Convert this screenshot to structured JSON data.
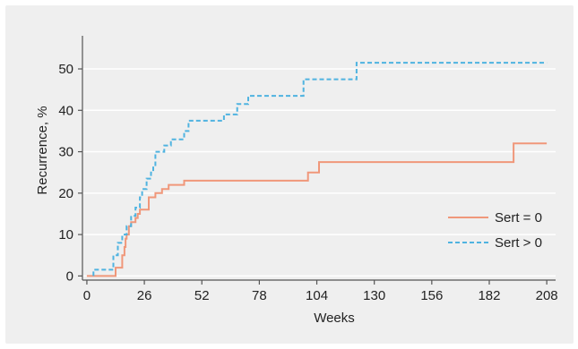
{
  "chart_data": {
    "type": "line",
    "step": true,
    "title": "",
    "xlabel": "Weeks",
    "ylabel": "Recurrence, %",
    "xlim": [
      -2,
      212
    ],
    "ylim": [
      -1,
      58
    ],
    "x_ticks": [
      0,
      26,
      52,
      78,
      104,
      130,
      156,
      182,
      208
    ],
    "y_ticks": [
      0,
      10,
      20,
      30,
      40,
      50
    ],
    "grid": "horizontal",
    "legend_position": "bottom-right",
    "series": [
      {
        "name": "Sert = 0",
        "color": "#f0977a",
        "dash": "solid",
        "points": [
          [
            0,
            0
          ],
          [
            13,
            0
          ],
          [
            13,
            2
          ],
          [
            16,
            2
          ],
          [
            16,
            5
          ],
          [
            17,
            5
          ],
          [
            17,
            7
          ],
          [
            17.5,
            7
          ],
          [
            17.5,
            9
          ],
          [
            18,
            9
          ],
          [
            18,
            10
          ],
          [
            19,
            10
          ],
          [
            19,
            12
          ],
          [
            20,
            12
          ],
          [
            20,
            13
          ],
          [
            22,
            13
          ],
          [
            22,
            14
          ],
          [
            23,
            14
          ],
          [
            23,
            15
          ],
          [
            24,
            15
          ],
          [
            24,
            16
          ],
          [
            28,
            16
          ],
          [
            28,
            19
          ],
          [
            31,
            19
          ],
          [
            31,
            20
          ],
          [
            34,
            20
          ],
          [
            34,
            21
          ],
          [
            37,
            21
          ],
          [
            37,
            22
          ],
          [
            44,
            22
          ],
          [
            44,
            23
          ],
          [
            100,
            23
          ],
          [
            100,
            25
          ],
          [
            105,
            25
          ],
          [
            105,
            27.5
          ],
          [
            193,
            27.5
          ],
          [
            193,
            32
          ],
          [
            208,
            32
          ]
        ]
      },
      {
        "name": "Sert > 0",
        "color": "#4fb3e0",
        "dash": "dashed",
        "points": [
          [
            3,
            0
          ],
          [
            3,
            1.5
          ],
          [
            12,
            1.5
          ],
          [
            12,
            5
          ],
          [
            14,
            5
          ],
          [
            14,
            8
          ],
          [
            16,
            8
          ],
          [
            16,
            10
          ],
          [
            18,
            10
          ],
          [
            18,
            12
          ],
          [
            20,
            12
          ],
          [
            20,
            14.5
          ],
          [
            22,
            14.5
          ],
          [
            22,
            16.5
          ],
          [
            24,
            16.5
          ],
          [
            24,
            19
          ],
          [
            25,
            19
          ],
          [
            25,
            21
          ],
          [
            27,
            21
          ],
          [
            27,
            23.5
          ],
          [
            29,
            23.5
          ],
          [
            29,
            25
          ],
          [
            30,
            25
          ],
          [
            30,
            26.5
          ],
          [
            31,
            26.5
          ],
          [
            31,
            30
          ],
          [
            35,
            30
          ],
          [
            35,
            31.5
          ],
          [
            38,
            31.5
          ],
          [
            38,
            33
          ],
          [
            44,
            33
          ],
          [
            44,
            35
          ],
          [
            46,
            35
          ],
          [
            46,
            37.5
          ],
          [
            62,
            37.5
          ],
          [
            62,
            39
          ],
          [
            68,
            39
          ],
          [
            68,
            41.5
          ],
          [
            73,
            41.5
          ],
          [
            73,
            43.5
          ],
          [
            98,
            43.5
          ],
          [
            98,
            47.5
          ],
          [
            122,
            47.5
          ],
          [
            122,
            51.5
          ],
          [
            208,
            51.5
          ]
        ]
      }
    ]
  }
}
